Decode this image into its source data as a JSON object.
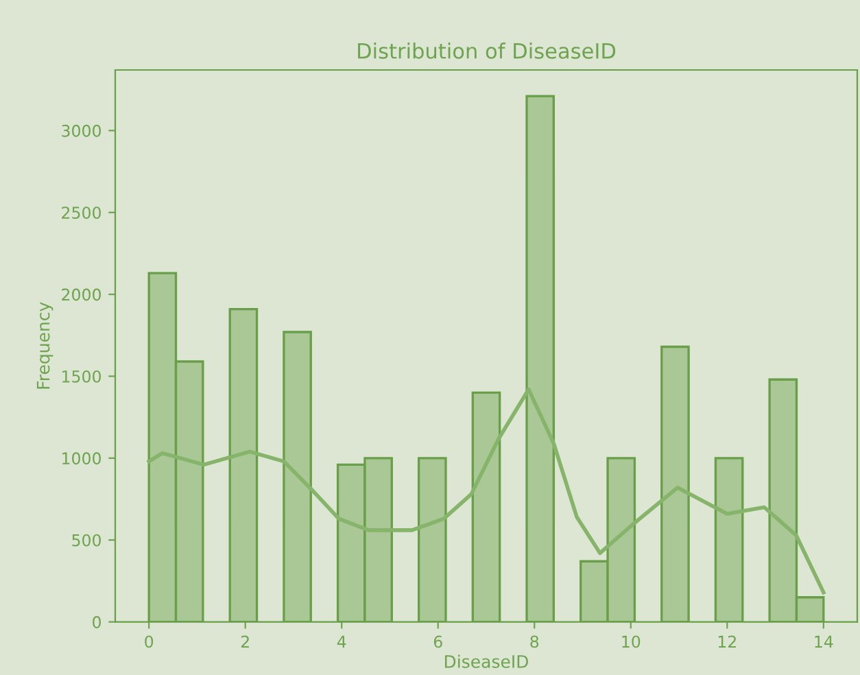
{
  "chart_data": {
    "type": "histogram",
    "title": "Distribution of DiseaseID",
    "xlabel": "DiseaseID",
    "ylabel": "Frequency",
    "bins": [
      0,
      0.56,
      1.12,
      1.68,
      2.24,
      2.8,
      3.36,
      3.92,
      4.48,
      5.04,
      5.6,
      6.16,
      6.72,
      7.28,
      7.84,
      8.4,
      8.96,
      9.52,
      10.08,
      10.64,
      11.2,
      11.76,
      12.32,
      12.88,
      13.44,
      14
    ],
    "values": [
      2130,
      1590,
      0,
      1910,
      0,
      1770,
      0,
      960,
      1000,
      0,
      1000,
      0,
      1400,
      0,
      3210,
      0,
      370,
      1000,
      0,
      1680,
      0,
      1000,
      0,
      1480,
      150
    ],
    "color": "#aac796",
    "series": [
      {
        "type": "line",
        "color": "#86b46a",
        "x": [
          0,
          0.28,
          1.14,
          2.09,
          2.8,
          3.37,
          3.94,
          4.56,
          5.46,
          6.12,
          6.69,
          7.26,
          7.88,
          8.4,
          8.88,
          9.36,
          10.02,
          10.97,
          12.0,
          12.77,
          13.43,
          14.0
        ],
        "values": [
          980,
          1030,
          960,
          1040,
          980,
          810,
          630,
          560,
          560,
          630,
          780,
          1120,
          1420,
          1090,
          640,
          420,
          590,
          820,
          660,
          700,
          530,
          180
        ]
      }
    ],
    "xlim": [
      -0.7,
      14.7
    ],
    "ylim": [
      0,
      3370
    ],
    "xticks": [
      0,
      2,
      4,
      6,
      8,
      10,
      12,
      14
    ],
    "yticks": [
      0,
      500,
      1000,
      1500,
      2000,
      2500,
      3000
    ],
    "grid": false,
    "legend": false
  }
}
